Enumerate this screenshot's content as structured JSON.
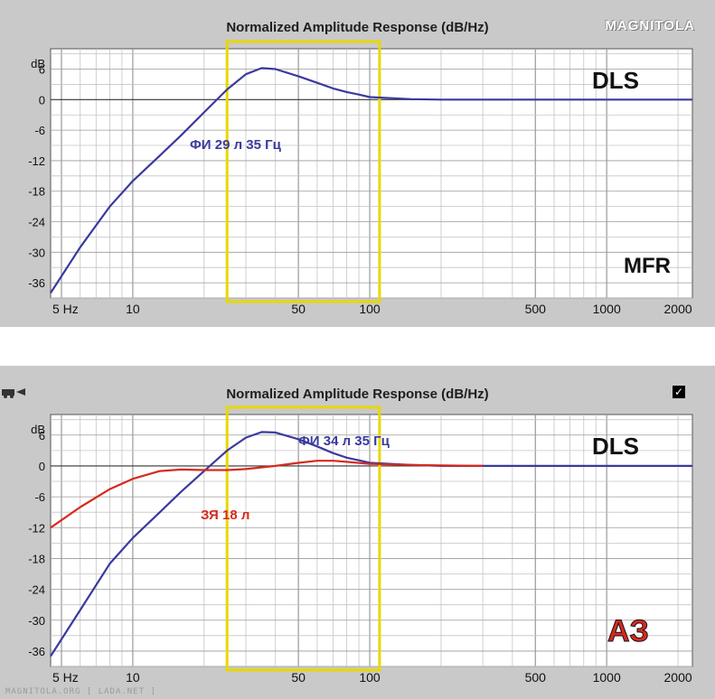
{
  "chart_data": [
    {
      "type": "line",
      "title": "Normalized Amplitude Response (dB/Hz)",
      "xscale": "log",
      "xlim": [
        4.5,
        2300
      ],
      "ylim": [
        -39,
        10
      ],
      "yunit": "dB",
      "yticks": [
        "6",
        "0",
        "-6",
        "-12",
        "-18",
        "-24",
        "-30",
        "-36"
      ],
      "xticks": [
        "5 Hz",
        "10",
        "50",
        "100",
        "500",
        "1000",
        "2000"
      ],
      "grid": true,
      "highlight_range_x": [
        25,
        110
      ],
      "labels": {
        "corner_top": "DLS",
        "corner_bottom": "MFR",
        "annotation": "ФИ 29 л 35 Гц",
        "brand": "MAGNITOLA"
      },
      "colors": {
        "series": "#3a3a9e",
        "highlight": "#e8d800"
      },
      "series": [
        {
          "color": "#3a3a9e",
          "x": [
            4.5,
            6,
            8,
            10,
            13,
            16,
            20,
            25,
            30,
            35,
            40,
            50,
            60,
            70,
            80,
            90,
            100,
            150,
            200,
            500,
            1000,
            2300
          ],
          "y": [
            -38,
            -29,
            -21,
            -16,
            -11,
            -7,
            -2.5,
            2,
            5,
            6.2,
            6,
            4.6,
            3.3,
            2.2,
            1.5,
            1,
            0.5,
            0.1,
            0,
            0,
            0,
            0
          ]
        }
      ]
    },
    {
      "type": "line",
      "title": "Normalized Amplitude Response (dB/Hz)",
      "xscale": "log",
      "xlim": [
        4.5,
        2300
      ],
      "ylim": [
        -39,
        10
      ],
      "yunit": "dB",
      "yticks": [
        "6",
        "0",
        "-6",
        "-12",
        "-18",
        "-24",
        "-30",
        "-36"
      ],
      "xticks": [
        "5 Hz",
        "10",
        "50",
        "100",
        "500",
        "1000",
        "2000"
      ],
      "grid": true,
      "highlight_range_x": [
        25,
        110
      ],
      "labels": {
        "corner_top": "DLS",
        "corner_bottom": "АЗ",
        "annotation_blue": "ФИ 34 л 35 Гц",
        "annotation_red": "ЗЯ 18 л",
        "watermark": "MAGNITOLA.ORG [ LADA.NET ]"
      },
      "colors": {
        "series_blue": "#3a3a9e",
        "series_red": "#d62a1e",
        "highlight": "#e8d800"
      },
      "series": [
        {
          "color": "#3a3a9e",
          "x": [
            4.5,
            6,
            8,
            10,
            13,
            16,
            20,
            25,
            30,
            35,
            40,
            50,
            60,
            70,
            80,
            90,
            100,
            150,
            200,
            500,
            1000,
            2300
          ],
          "y": [
            -37,
            -28,
            -19,
            -14,
            -9,
            -5,
            -1,
            3,
            5.5,
            6.6,
            6.5,
            5.2,
            3.8,
            2.5,
            1.6,
            1.1,
            0.6,
            0.2,
            0,
            0,
            0,
            0
          ]
        },
        {
          "color": "#d62a1e",
          "x": [
            4.5,
            6,
            8,
            10,
            13,
            16,
            20,
            25,
            30,
            40,
            50,
            60,
            70,
            80,
            100,
            150,
            200,
            300
          ],
          "y": [
            -12,
            -8,
            -4.5,
            -2.5,
            -1,
            -0.7,
            -0.8,
            -0.8,
            -0.6,
            0,
            0.6,
            1,
            1,
            0.8,
            0.4,
            0.2,
            0.1,
            0
          ]
        }
      ]
    }
  ]
}
